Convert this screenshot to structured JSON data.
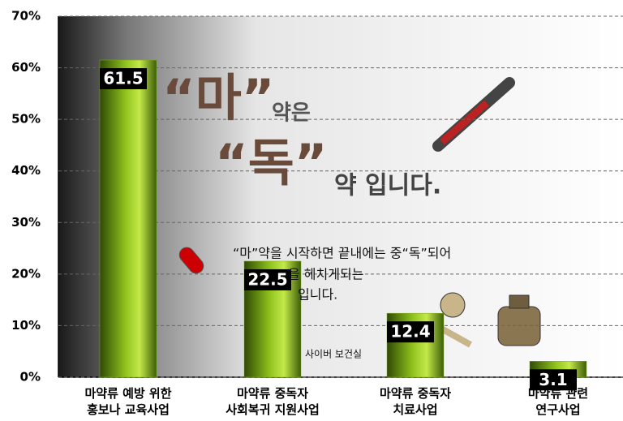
{
  "chart_data": {
    "type": "bar",
    "categories": [
      "마약류 예방 위한\n홍보나 교육사업",
      "마약류 중독자\n사회복귀 지원사업",
      "마약류 중독자\n치료사업",
      "마약류 관련\n연구사업"
    ],
    "values": [
      61.5,
      22.5,
      12.4,
      3.1
    ],
    "color": "#7ab317",
    "ylim": [
      0,
      70
    ],
    "yticks": [
      {
        "value": 0,
        "label": "0%"
      },
      {
        "value": 10,
        "label": "10%"
      },
      {
        "value": 20,
        "label": "20%"
      },
      {
        "value": 30,
        "label": "30%"
      },
      {
        "value": 40,
        "label": "40%"
      },
      {
        "value": 50,
        "label": "50%"
      },
      {
        "value": 60,
        "label": "60%"
      },
      {
        "value": 70,
        "label": "70%"
      }
    ],
    "grid": true,
    "annotations": [
      "“마”",
      "약은",
      "“독”",
      "약 입니다.",
      "“마”약을 시작하면 끝내에는 중“독”되어",
      "을 헤치게되는",
      "입니다.",
      "사이버 보건실"
    ]
  }
}
